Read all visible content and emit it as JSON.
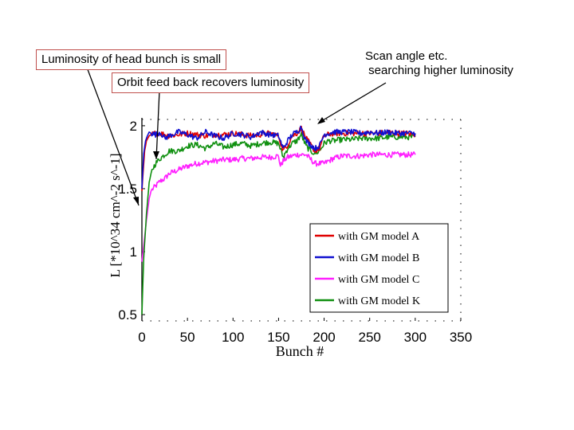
{
  "annotations": {
    "head_bunch": "Luminosity of head bunch is small",
    "orbit_feedback": "Orbit feed back recovers luminosity",
    "scan_line1": "Scan angle etc.",
    "scan_line2": " searching higher luminosity"
  },
  "chart_data": {
    "type": "line",
    "title": "",
    "xlabel": "Bunch #",
    "ylabel": "L [*10^34 cm^-2 s^-1]",
    "xlim": [
      0,
      350
    ],
    "ylim": [
      0.45,
      2.05
    ],
    "xticks": [
      0,
      50,
      100,
      150,
      200,
      250,
      300,
      350
    ],
    "yticks": [
      0.5,
      1,
      1.5,
      2
    ],
    "ytick_labels": [
      "0.5",
      "1",
      "1.5",
      "2"
    ],
    "legend_position": "lower-right",
    "series": [
      {
        "name": "with GM model A",
        "color": "#e00000",
        "x": [
          0,
          2,
          3,
          5,
          8,
          10,
          15,
          20,
          25,
          30,
          40,
          50,
          60,
          70,
          80,
          90,
          100,
          110,
          120,
          130,
          140,
          150,
          155,
          160,
          165,
          170,
          175,
          180,
          185,
          190,
          195,
          200,
          205,
          210,
          220,
          230,
          240,
          250,
          260,
          270,
          280,
          290,
          300
        ],
        "y": [
          1.48,
          1.7,
          1.8,
          1.88,
          1.92,
          1.93,
          1.94,
          1.94,
          1.93,
          1.92,
          1.93,
          1.94,
          1.93,
          1.92,
          1.93,
          1.93,
          1.94,
          1.93,
          1.92,
          1.93,
          1.94,
          1.92,
          1.8,
          1.85,
          1.92,
          1.94,
          1.98,
          1.9,
          1.85,
          1.8,
          1.82,
          1.92,
          1.93,
          1.94,
          1.94,
          1.94,
          1.94,
          1.94,
          1.94,
          1.95,
          1.94,
          1.94,
          1.93
        ]
      },
      {
        "name": "with GM model B",
        "color": "#1010d0",
        "x": [
          0,
          2,
          4,
          6,
          8,
          10,
          15,
          20,
          25,
          30,
          40,
          50,
          60,
          70,
          80,
          90,
          100,
          110,
          120,
          130,
          140,
          150,
          155,
          160,
          165,
          170,
          175,
          180,
          185,
          190,
          195,
          200,
          205,
          210,
          220,
          230,
          240,
          250,
          260,
          270,
          280,
          290,
          300
        ],
        "y": [
          1.5,
          1.78,
          1.88,
          1.92,
          1.95,
          1.94,
          1.93,
          1.95,
          1.9,
          1.92,
          1.95,
          1.93,
          1.9,
          1.95,
          1.92,
          1.9,
          1.94,
          1.93,
          1.91,
          1.95,
          1.93,
          1.92,
          1.82,
          1.88,
          1.93,
          1.95,
          1.99,
          1.88,
          1.85,
          1.82,
          1.84,
          1.93,
          1.94,
          1.95,
          1.95,
          1.95,
          1.94,
          1.95,
          1.94,
          1.95,
          1.94,
          1.94,
          1.94
        ]
      },
      {
        "name": "with GM model C",
        "color": "#ff20ff",
        "x": [
          0,
          2,
          5,
          8,
          10,
          12,
          15,
          20,
          25,
          30,
          40,
          50,
          60,
          70,
          80,
          90,
          100,
          110,
          120,
          130,
          140,
          150,
          152,
          155,
          160,
          165,
          170,
          180,
          190,
          200,
          210,
          220,
          230,
          240,
          250,
          260,
          270,
          280,
          290,
          300
        ],
        "y": [
          0.92,
          1.05,
          1.25,
          1.42,
          1.48,
          1.5,
          1.52,
          1.56,
          1.58,
          1.62,
          1.65,
          1.68,
          1.7,
          1.71,
          1.72,
          1.73,
          1.73,
          1.74,
          1.74,
          1.75,
          1.75,
          1.76,
          1.68,
          1.72,
          1.75,
          1.76,
          1.77,
          1.77,
          1.7,
          1.7,
          1.74,
          1.76,
          1.76,
          1.76,
          1.77,
          1.77,
          1.77,
          1.77,
          1.77,
          1.77
        ]
      },
      {
        "name": "with GM model K",
        "color": "#109010",
        "x": [
          0,
          2,
          5,
          8,
          10,
          12,
          15,
          20,
          25,
          30,
          40,
          50,
          60,
          70,
          80,
          90,
          100,
          110,
          120,
          130,
          140,
          150,
          155,
          160,
          165,
          170,
          175,
          180,
          185,
          190,
          195,
          200,
          205,
          210,
          220,
          230,
          240,
          250,
          260,
          270,
          280,
          290,
          300
        ],
        "y": [
          0.5,
          0.95,
          1.3,
          1.55,
          1.62,
          1.66,
          1.7,
          1.74,
          1.77,
          1.8,
          1.8,
          1.84,
          1.85,
          1.82,
          1.86,
          1.83,
          1.85,
          1.86,
          1.84,
          1.86,
          1.87,
          1.86,
          1.75,
          1.82,
          1.86,
          1.88,
          1.93,
          1.84,
          1.8,
          1.78,
          1.8,
          1.86,
          1.88,
          1.88,
          1.89,
          1.89,
          1.9,
          1.9,
          1.9,
          1.91,
          1.91,
          1.91,
          1.91
        ]
      }
    ]
  }
}
